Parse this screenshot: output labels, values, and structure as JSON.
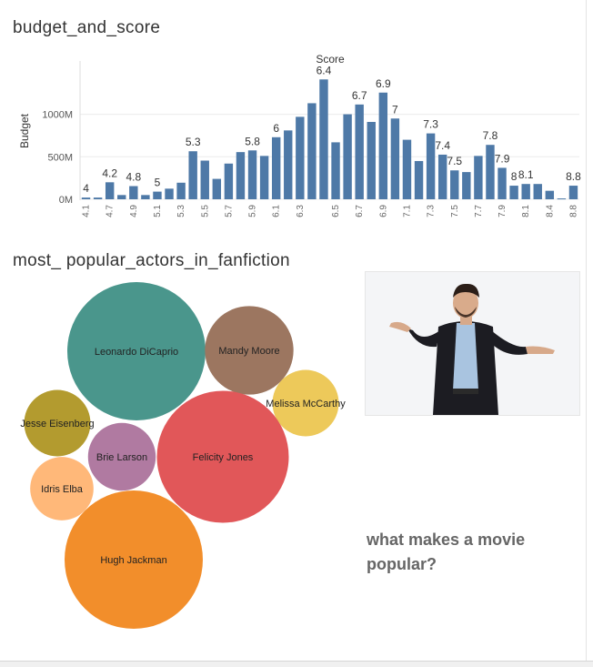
{
  "charts": {
    "budget_title": "budget_and_score",
    "actors_title": "most_ popular_actors_in_fanfiction"
  },
  "question_text": "what makes a movie popular?",
  "image": {
    "description_icon": "shrugging-man-icon"
  },
  "chart_data": [
    {
      "type": "bar",
      "title": "budget_and_score",
      "xlabel": "Score",
      "ylabel": "Budget",
      "y_ticks": [
        "0M",
        "500M",
        "1000M"
      ],
      "ylim": [
        0,
        1520
      ],
      "x_tick_labels": [
        "4.1",
        "4.7",
        "4.9",
        "5.1",
        "5.3",
        "5.5",
        "5.7",
        "5.9",
        "6.1",
        "6.3",
        "6.5",
        "6.7",
        "6.9",
        "7.1",
        "7.3",
        "7.5",
        "7.7",
        "7.9",
        "8.1",
        "8.4",
        "8.8"
      ],
      "bar_color": "#4e79a7",
      "grid": true,
      "values": [
        20,
        20,
        200,
        50,
        155,
        50,
        90,
        125,
        195,
        565,
        455,
        240,
        420,
        555,
        575,
        510,
        730,
        810,
        970,
        1130,
        1410,
        670,
        1000,
        1115,
        910,
        1255,
        950,
        700,
        450,
        775,
        525,
        340,
        320,
        510,
        640,
        370,
        160,
        180,
        180,
        100,
        10,
        160
      ],
      "data_labels": [
        {
          "bar": 0,
          "label": "4"
        },
        {
          "bar": 2,
          "label": "4.2"
        },
        {
          "bar": 4,
          "label": "4.8"
        },
        {
          "bar": 6,
          "label": "5"
        },
        {
          "bar": 9,
          "label": "5.3"
        },
        {
          "bar": 14,
          "label": "5.8"
        },
        {
          "bar": 16,
          "label": "6"
        },
        {
          "bar": 20,
          "label": "6.4"
        },
        {
          "bar": 23,
          "label": "6.7"
        },
        {
          "bar": 25,
          "label": "6.9"
        },
        {
          "bar": 26,
          "label": "7"
        },
        {
          "bar": 29,
          "label": "7.3"
        },
        {
          "bar": 30,
          "label": "7.4"
        },
        {
          "bar": 31,
          "label": "7.5"
        },
        {
          "bar": 34,
          "label": "7.8"
        },
        {
          "bar": 35,
          "label": "7.9"
        },
        {
          "bar": 36,
          "label": "8"
        },
        {
          "bar": 37,
          "label": "8.1"
        },
        {
          "bar": 41,
          "label": "8.8"
        }
      ]
    },
    {
      "type": "bubble",
      "title": "most_ popular_actors_in_fanfiction",
      "items": [
        {
          "name": "Leonardo DiCaprio",
          "size": 100,
          "color": "#4a968c"
        },
        {
          "name": "Mandy Moore",
          "size": 41,
          "color": "#9c7660"
        },
        {
          "name": "Melissa McCarthy",
          "size": 23,
          "color": "#edc95a"
        },
        {
          "name": "Jesse Eisenberg",
          "size": 23,
          "color": "#b39b2f"
        },
        {
          "name": "Brie Larson",
          "size": 24,
          "color": "#b07aa1"
        },
        {
          "name": "Felicity Jones",
          "size": 91,
          "color": "#e15759"
        },
        {
          "name": "Idris Elba",
          "size": 21,
          "color": "#ffb879"
        },
        {
          "name": "Hugh Jackman",
          "size": 100,
          "color": "#f28e2b"
        }
      ]
    }
  ]
}
